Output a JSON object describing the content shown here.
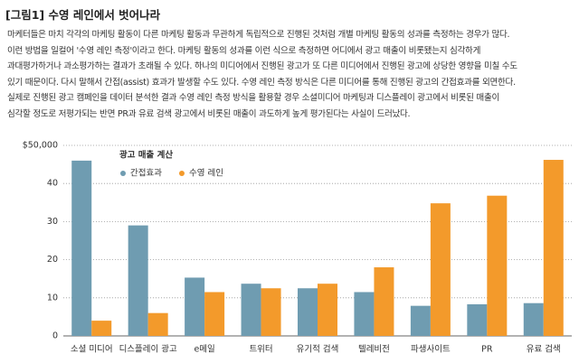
{
  "header": {
    "title": "[그림1] 수영 레인에서 벗어나라"
  },
  "body": {
    "lines": [
      "마케터들은 마치 각각의 마케팅 활동이 다른 마케팅 활동과 무관하게 독립적으로 진행된 것처럼 개별 마케팅 활동의 성과를 측정하는 경우가 많다.",
      "이런 방법을 일컬어 '수영 레인 측정'이라고 한다. 마케팅 활동의 성과를 이런 식으로 측정하면 어디에서 광고 매출이 비롯됐는지 심각하게",
      "과대평가하거나 과소평가하는 결과가 초래될 수 있다. 하나의 미디어에서 진행된 광고가 또 다른 미디어에서 진행된 광고에 상당한 영향을 미칠 수도",
      "있기 때문이다. 다시 말해서 간접(assist) 효과가 발생할 수도 있다. 수영 레인 측정 방식은 다른 미디어를 통해 진행된 광고의 간접효과를 외면한다.",
      "실제로 진행된 광고 캠페인을 데이터 분석한 결과 수영 레인 측정 방식을 활용할 경우 소셜미디어 마케팅과 디스플레이 광고에서 비롯된 매출이",
      "심각할 정도로 저평가되는 반면 PR과 유료 검색 광고에서 비롯된 매출이 과도하게 높게 평가된다는 사실이 드러났다."
    ]
  },
  "chart_data": {
    "type": "bar",
    "legend_title": "광고 매출 계산",
    "categories": [
      "소셜 미디어",
      "디스플레이 광고",
      "e메일",
      "트위터",
      "유기적 검색",
      "텔레비전",
      "파생사이트",
      "PR",
      "유료 검색"
    ],
    "series": [
      {
        "name": "간접효과",
        "color": "#6f9cb1",
        "values": [
          46,
          29,
          15.3,
          13.7,
          12.5,
          11.5,
          7.9,
          8.3,
          8.6
        ]
      },
      {
        "name": "수영 레인",
        "color": "#f39a2b",
        "values": [
          4,
          6,
          11.5,
          12.5,
          13.7,
          18,
          34.8,
          36.8,
          46.2
        ]
      }
    ],
    "ylim": [
      0,
      50
    ],
    "yticks": [
      0,
      10,
      20,
      30,
      40,
      {
        "value": 50,
        "label": "$50,000"
      }
    ],
    "grid": true
  }
}
